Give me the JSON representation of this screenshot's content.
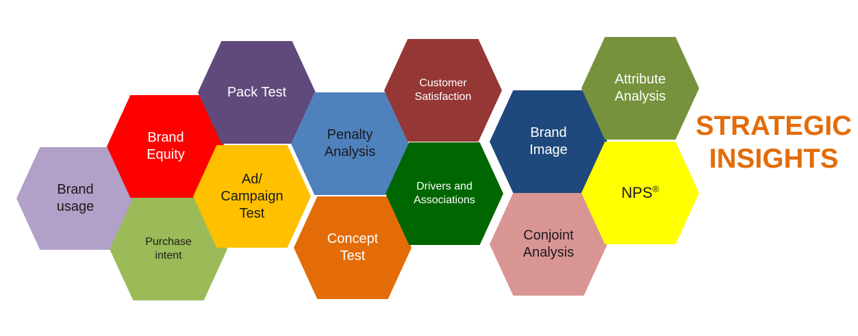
{
  "title": "STRATEGIC\nINSIGHTS",
  "colors": {
    "title": "#E36C0A"
  },
  "hexagons": [
    {
      "id": "brand-usage",
      "label": "Brand\nusage",
      "color": "#B1A0C7",
      "text": "dark"
    },
    {
      "id": "purchase-intent",
      "label": "Purchase\nintent",
      "color": "#9BBB59",
      "text": "dark"
    },
    {
      "id": "brand-equity",
      "label": "Brand\nEquity",
      "color": "#FF0000",
      "text": "white"
    },
    {
      "id": "ad-campaign-test",
      "label": "Ad/\nCampaign\nTest",
      "color": "#FFC000",
      "text": "dark"
    },
    {
      "id": "pack-test",
      "label": "Pack Test",
      "color": "#604A7B",
      "text": "white"
    },
    {
      "id": "penalty-analysis",
      "label": "Penalty\nAnalysis",
      "color": "#4F81BD",
      "text": "dark"
    },
    {
      "id": "concept-test",
      "label": "Concept\nTest",
      "color": "#E36C09",
      "text": "white"
    },
    {
      "id": "customer-satisfaction",
      "label": "Customer\nSatisfaction",
      "color": "#953735",
      "text": "white"
    },
    {
      "id": "drivers-associations",
      "label": "Drivers  and\nAssociations",
      "color": "#006600",
      "text": "white"
    },
    {
      "id": "brand-image",
      "label": "Brand\nImage",
      "color": "#1F497D",
      "text": "white"
    },
    {
      "id": "conjoint-analysis",
      "label": "Conjoint\nAnalysis",
      "color": "#D99594",
      "text": "dark"
    },
    {
      "id": "attribute-analysis",
      "label": "Attribute\nAnalysis",
      "color": "#76923C",
      "text": "white"
    },
    {
      "id": "nps",
      "label": "NPS",
      "sup": "®",
      "color": "#FFFF00",
      "text": "dark"
    }
  ]
}
